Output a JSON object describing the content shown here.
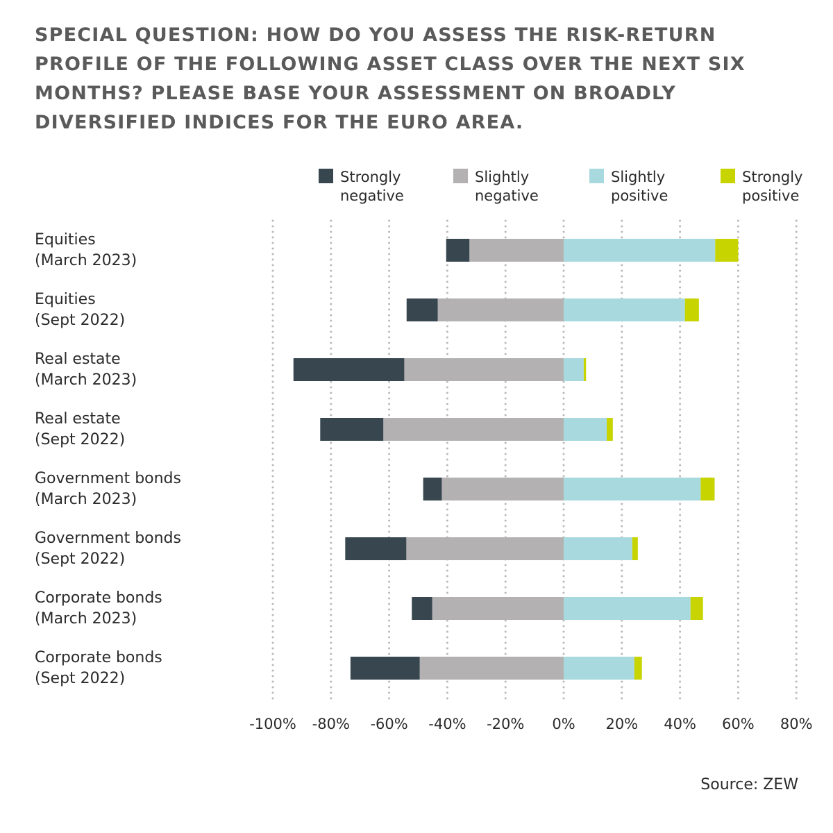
{
  "title": "SPECIAL QUESTION: HOW DO YOU ASSESS THE RISK-RETURN PROFILE OF THE FOLLOWING ASSET CLASS OVER THE NEXT SIX MONTHS? PLEASE BASE YOUR ASSESSMENT ON BROADLY DIVERSIFIED INDICES FOR THE EURO AREA.",
  "source": "Source: ZEW",
  "colors": {
    "strongly_negative": "#37464f",
    "slightly_negative": "#b3b1b2",
    "slightly_positive": "#a7d9de",
    "strongly_positive": "#c7d400",
    "grid": "#b9b9b9"
  },
  "chart_data": {
    "type": "bar",
    "orientation": "horizontal-diverging-stacked",
    "categories": [
      [
        "Equities",
        "(March 2023)"
      ],
      [
        "Equities",
        "(Sept 2022)"
      ],
      [
        "Real estate",
        "(March 2023)"
      ],
      [
        "Real estate",
        "(Sept 2022)"
      ],
      [
        "Government bonds",
        "(March 2023)"
      ],
      [
        "Government bonds",
        "(Sept 2022)"
      ],
      [
        "Corporate bonds",
        "(March 2023)"
      ],
      [
        "Corporate bonds",
        "(Sept 2022)"
      ]
    ],
    "series": [
      {
        "name": "Strongly negative",
        "legend": [
          "Strongly",
          "negative"
        ],
        "color": "#37464f",
        "side": "negative",
        "values": [
          -8,
          -10.7,
          -38.1,
          -21.7,
          -6.4,
          -21,
          -7,
          -23.8
        ]
      },
      {
        "name": "Slightly negative",
        "legend": [
          "Slightly",
          "negative"
        ],
        "color": "#b3b1b2",
        "side": "negative",
        "values": [
          -32.4,
          -43.3,
          -54.8,
          -62,
          -41.9,
          -54.1,
          -45.2,
          -49.5
        ]
      },
      {
        "name": "Slightly positive",
        "legend": [
          "Slightly",
          "positive"
        ],
        "color": "#a7d9de",
        "side": "positive",
        "values": [
          52.1,
          41.7,
          6.9,
          14.8,
          47.1,
          23.6,
          43.6,
          24.3
        ]
      },
      {
        "name": "Strongly positive",
        "legend": [
          "Strongly",
          "positive"
        ],
        "color": "#c7d400",
        "side": "positive",
        "values": [
          7.9,
          4.8,
          0.8,
          2.1,
          4.8,
          1.9,
          4.3,
          2.6
        ]
      }
    ],
    "xlim": [
      -100,
      80
    ],
    "xticks": [
      -100,
      -80,
      -60,
      -40,
      -20,
      0,
      20,
      40,
      60,
      80
    ],
    "xtick_labels": [
      "-100%",
      "-80%",
      "-60%",
      "-40%",
      "-20%",
      "0%",
      "20%",
      "40%",
      "60%",
      "80%"
    ],
    "grid": "vertical dotted",
    "legend_position": "top"
  }
}
